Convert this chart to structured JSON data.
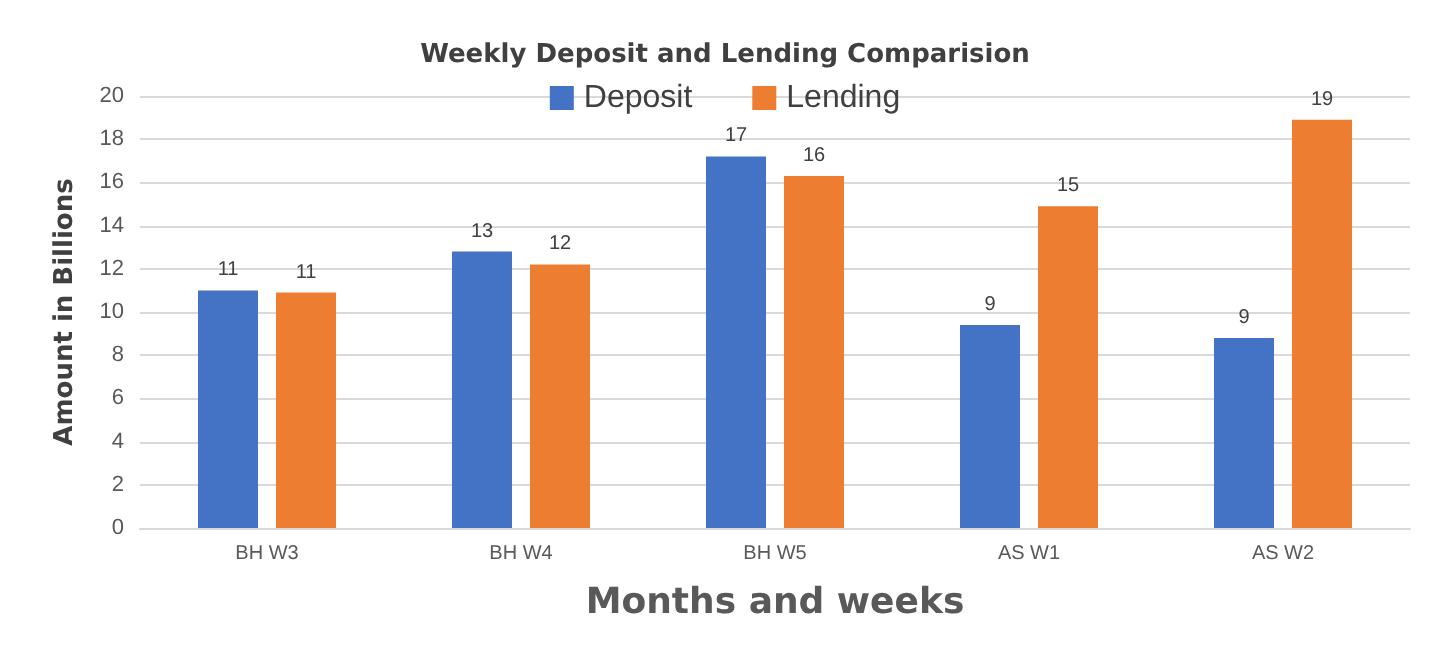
{
  "chart_data": {
    "type": "bar",
    "title": "Weekly Deposit and Lending Comparision",
    "xlabel": "Months and weeks",
    "ylabel": "Amount in Billions",
    "categories": [
      "BH W3",
      "BH W4",
      "BH W5",
      "AS W1",
      "AS W2"
    ],
    "series": [
      {
        "name": "Deposit",
        "color": "#4472c4",
        "values": [
          11.0,
          12.8,
          17.2,
          9.4,
          8.8
        ],
        "value_labels": [
          "11",
          "13",
          "17",
          "9",
          "9"
        ]
      },
      {
        "name": "Lending",
        "color": "#ed7d31",
        "values": [
          10.9,
          12.2,
          16.3,
          14.9,
          18.9
        ],
        "value_labels": [
          "11",
          "12",
          "16",
          "15",
          "19"
        ]
      }
    ],
    "ylim": [
      0,
      20
    ],
    "yticks": [
      0,
      2,
      4,
      6,
      8,
      10,
      12,
      14,
      16,
      18,
      20
    ],
    "grid": "y",
    "legend": "top"
  }
}
